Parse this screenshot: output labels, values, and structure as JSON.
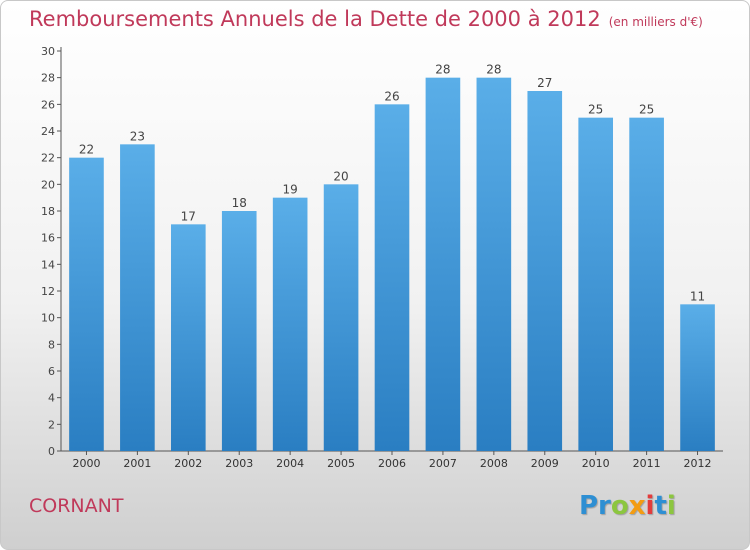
{
  "title": "Remboursements Annuels de la Dette de 2000 à 2012",
  "subtitle": "(en milliers d'€)",
  "commune": "CORNANT",
  "brand": {
    "letters": [
      "Pr",
      "o",
      "x",
      "i",
      "t",
      "i"
    ],
    "colors": [
      "#2e8fd3",
      "#8cc63f",
      "#f39c12",
      "#e23c3c",
      "#2e8fd3",
      "#8cc63f"
    ]
  },
  "chart_data": {
    "type": "bar",
    "categories": [
      "2000",
      "2001",
      "2002",
      "2003",
      "2004",
      "2005",
      "2006",
      "2007",
      "2008",
      "2009",
      "2010",
      "2011",
      "2012"
    ],
    "values": [
      22,
      23,
      17,
      18,
      19,
      20,
      26,
      28,
      28,
      27,
      25,
      25,
      11
    ],
    "ylim": [
      0,
      30
    ],
    "yticks": [
      0,
      2,
      4,
      6,
      8,
      10,
      12,
      14,
      16,
      18,
      20,
      22,
      24,
      26,
      28,
      30
    ],
    "grid": false,
    "bar_color_top": "#5aaee8",
    "bar_color_bottom": "#2a7ec2"
  }
}
